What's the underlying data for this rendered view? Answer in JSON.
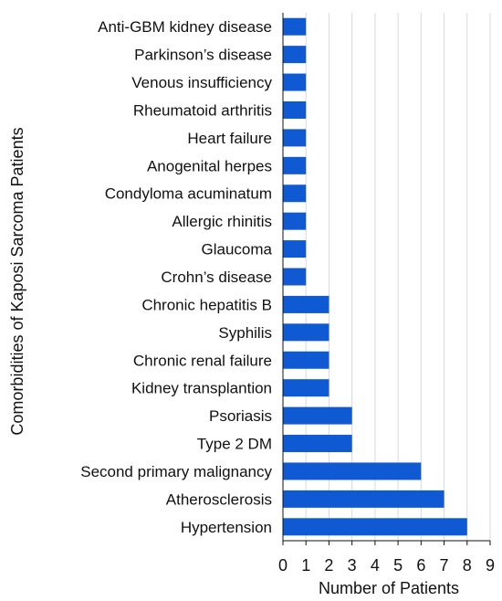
{
  "chart_data": {
    "type": "bar",
    "orientation": "horizontal",
    "title": "",
    "xlabel": "Number of Patients",
    "ylabel": "Comorbidities of Kaposi Sarcoma Patients",
    "xlim": [
      0,
      9
    ],
    "xticks": [
      "0",
      "1",
      "2",
      "3",
      "4",
      "5",
      "6",
      "7",
      "8",
      "9"
    ],
    "grid": "vertical",
    "legend": "none",
    "bar_color": "#0f5ad3",
    "categories": [
      "Anti-GBM kidney disease",
      "Parkinson’s disease",
      "Venous insufficiency",
      "Rheumatoid arthritis",
      "Heart failure",
      "Anogenital herpes",
      "Condyloma acuminatum",
      "Allergic rhinitis",
      "Glaucoma",
      "Crohn’s disease",
      "Chronic hepatitis B",
      "Syphilis",
      "Chronic renal failure",
      "Kidney transplantion",
      "Psoriasis",
      "Type 2 DM",
      "Second primary malignancy",
      "Atherosclerosis",
      "Hypertension"
    ],
    "values": [
      1,
      1,
      1,
      1,
      1,
      1,
      1,
      1,
      1,
      1,
      2,
      2,
      2,
      2,
      3,
      3,
      6,
      7,
      8
    ]
  }
}
